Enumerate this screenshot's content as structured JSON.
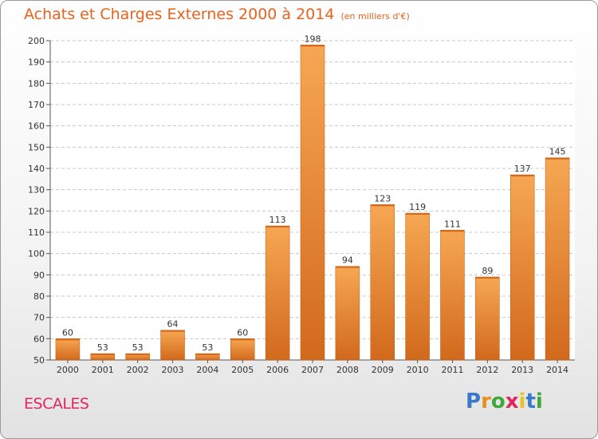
{
  "title": "Achats et Charges Externes 2000 à 2014",
  "subtitle": "(en milliers d'€)",
  "town": "ESCALES",
  "logo": {
    "letters": [
      "P",
      "r",
      "o",
      "x",
      "i",
      "t",
      "i"
    ],
    "colors": [
      "#3a78c9",
      "#e8901b",
      "#3fa83a",
      "#e0265d",
      "#e8c31b",
      "#3a78c9",
      "#3fa83a"
    ]
  },
  "colors": {
    "bar": "#f08a2c",
    "bar_light": "#f6a753",
    "bar_dark": "#d2691c",
    "title": "#e5631e",
    "town": "#e0265d"
  },
  "chart_data": {
    "type": "bar",
    "categories": [
      "2000",
      "2001",
      "2002",
      "2003",
      "2004",
      "2005",
      "2006",
      "2007",
      "2008",
      "2009",
      "2010",
      "2011",
      "2012",
      "2013",
      "2014"
    ],
    "values": [
      60,
      53,
      53,
      64,
      53,
      60,
      113,
      198,
      94,
      123,
      119,
      111,
      89,
      137,
      145
    ],
    "ylim": [
      50,
      200
    ],
    "yticks": [
      50,
      60,
      70,
      80,
      90,
      100,
      110,
      120,
      130,
      140,
      150,
      160,
      170,
      180,
      190,
      200
    ],
    "grid": true
  }
}
